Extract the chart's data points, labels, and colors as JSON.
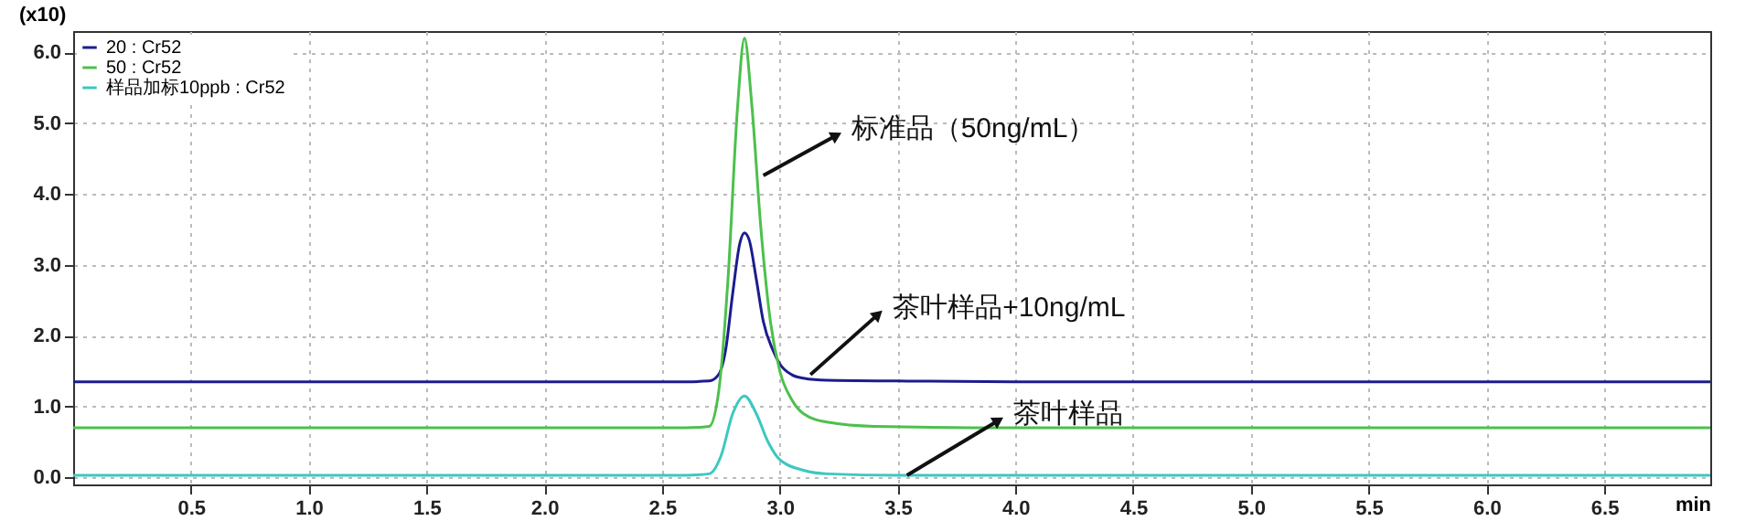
{
  "chart_data": {
    "type": "line",
    "ylabel": "(x10)",
    "xlabel": "min",
    "xlim": [
      0,
      6.95
    ],
    "ylim": [
      -0.1,
      6.3
    ],
    "xticks": [
      0.5,
      {
        "value": 1,
        "label": "1.0"
      },
      1.5,
      {
        "value": 2,
        "label": "2.0"
      },
      2.5,
      {
        "value": 3,
        "label": "3.0"
      },
      3.5,
      {
        "value": 4,
        "label": "4.0"
      },
      4.5,
      {
        "value": 5,
        "label": "5.0"
      },
      5.5,
      {
        "value": 6,
        "label": "6.0"
      },
      6.5
    ],
    "yticks": [
      {
        "value": 0,
        "label": "0.0"
      },
      {
        "value": 1,
        "label": "1.0"
      },
      {
        "value": 2,
        "label": "2.0"
      },
      {
        "value": 3,
        "label": "3.0"
      },
      {
        "value": 4,
        "label": "4.0"
      },
      {
        "value": 5,
        "label": "5.0"
      },
      {
        "value": 6,
        "label": "6.0"
      }
    ],
    "grid": true,
    "legend": "top left",
    "line_style": "solid",
    "marker": "none",
    "series": [
      {
        "name": "20 : Cr52",
        "color": "#1c1c8e",
        "x": [
          0,
          1,
          2,
          2.6,
          2.7,
          2.74,
          2.77,
          2.8,
          2.83,
          2.85,
          2.87,
          2.9,
          2.93,
          2.97,
          3.0,
          3.05,
          3.1,
          3.2,
          3.5,
          4,
          5,
          6,
          6.95
        ],
        "values": [
          1.35,
          1.35,
          1.35,
          1.35,
          1.36,
          1.45,
          1.8,
          2.6,
          3.3,
          3.45,
          3.35,
          2.8,
          2.2,
          1.8,
          1.6,
          1.45,
          1.4,
          1.37,
          1.36,
          1.35,
          1.35,
          1.35,
          1.35
        ]
      },
      {
        "name": "50 : Cr52",
        "color": "#4cc04c",
        "x": [
          0,
          1,
          2,
          2.6,
          2.7,
          2.74,
          2.78,
          2.82,
          2.85,
          2.88,
          2.92,
          2.96,
          3.0,
          3.05,
          3.1,
          3.2,
          3.4,
          4,
          5,
          6,
          6.95
        ],
        "values": [
          0.7,
          0.7,
          0.7,
          0.7,
          0.72,
          1.2,
          2.8,
          5.2,
          6.2,
          5.3,
          3.5,
          2.2,
          1.5,
          1.1,
          0.9,
          0.78,
          0.72,
          0.7,
          0.7,
          0.7,
          0.7
        ]
      },
      {
        "name": "样品加标10ppb : Cr52",
        "color": "#3cc8c0",
        "x": [
          0,
          1,
          2,
          2.6,
          2.7,
          2.75,
          2.8,
          2.85,
          2.9,
          2.95,
          3.0,
          3.1,
          3.2,
          3.5,
          4,
          5,
          6,
          6.95
        ],
        "values": [
          0.03,
          0.03,
          0.03,
          0.03,
          0.05,
          0.3,
          0.9,
          1.15,
          0.9,
          0.5,
          0.25,
          0.1,
          0.05,
          0.03,
          0.03,
          0.03,
          0.03,
          0.03
        ]
      }
    ],
    "annotations": [
      {
        "text": "标准品（50ng/mL）",
        "x": 2.93,
        "y": 4.26
      },
      {
        "text": "茶叶样品+10ng/mL",
        "x": 3.13,
        "y": 1.45
      },
      {
        "text": "茶叶样品",
        "x": 3.54,
        "y": 0.03
      }
    ]
  }
}
